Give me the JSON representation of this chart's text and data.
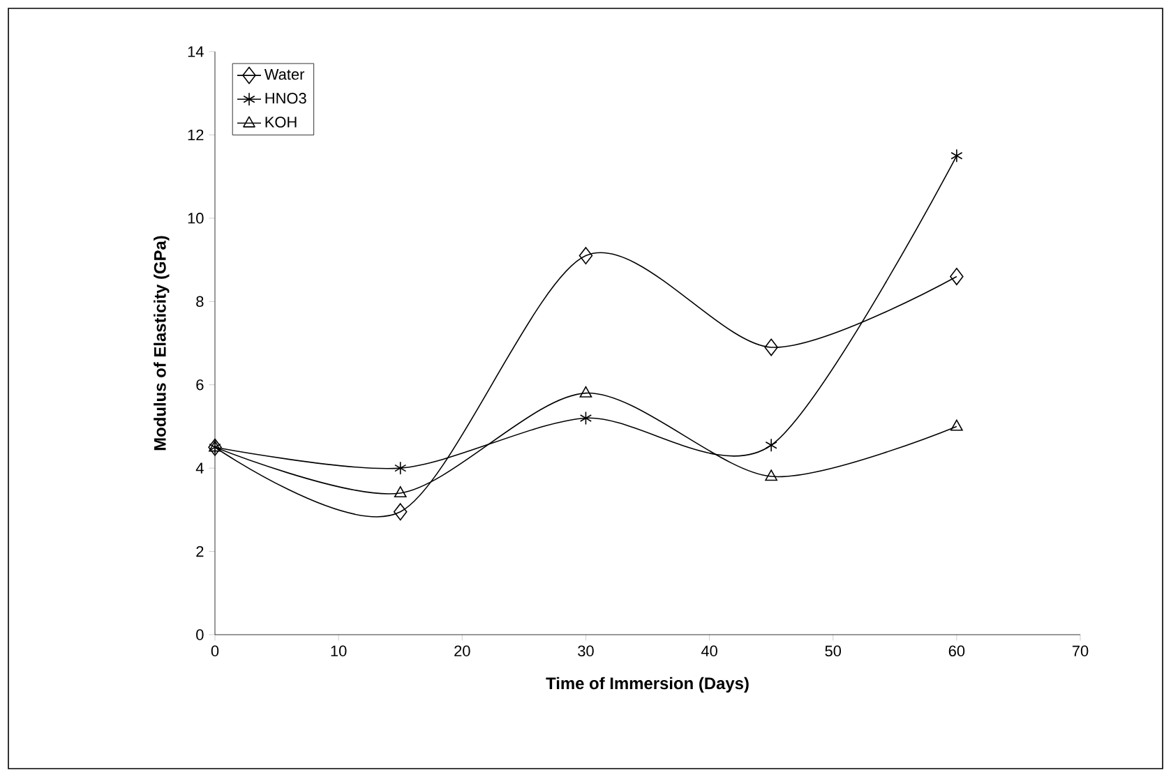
{
  "chart_data": {
    "type": "line",
    "xlabel": "Time of Immersion (Days)",
    "ylabel": "Modulus of Elasticity (GPa)",
    "x": [
      0,
      15,
      30,
      45,
      60
    ],
    "series": [
      {
        "name": "Water",
        "color": "#000000",
        "marker": "diamond",
        "values": [
          4.5,
          2.95,
          9.1,
          6.9,
          8.6
        ]
      },
      {
        "name": "HNO3",
        "color": "#000000",
        "marker": "cross",
        "values": [
          4.5,
          4.0,
          5.2,
          4.55,
          11.5
        ]
      },
      {
        "name": "KOH",
        "color": "#000000",
        "marker": "triangle",
        "values": [
          4.5,
          3.4,
          5.8,
          3.8,
          5.0
        ]
      }
    ],
    "xlim": [
      0,
      70
    ],
    "xticks": [
      0,
      10,
      20,
      30,
      40,
      50,
      60,
      70
    ],
    "ylim": [
      0,
      14
    ],
    "yticks": [
      0,
      2,
      4,
      6,
      8,
      10,
      12,
      14
    ],
    "grid": false,
    "legend": "top left",
    "line_style": "solid"
  }
}
